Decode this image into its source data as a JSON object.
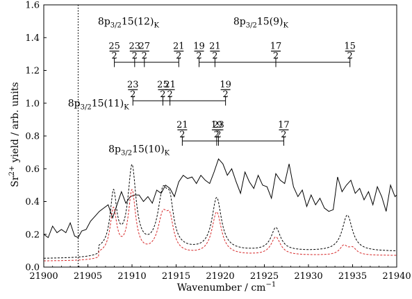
{
  "chart_data": {
    "type": "line",
    "xlabel": "Wavenumber / cm",
    "xlabel_superscript": "−1",
    "ylabel_parts": [
      "Sr",
      "2+",
      " yield / arb. units"
    ],
    "xlim": [
      21900,
      21940
    ],
    "ylim": [
      0,
      1.6
    ],
    "x_ticks": [
      21900,
      21905,
      21910,
      21915,
      21920,
      21925,
      21930,
      21935,
      21940
    ],
    "y_ticks": [
      0.0,
      0.2,
      0.4,
      0.6,
      0.8,
      1.0,
      1.2,
      1.4,
      1.6
    ],
    "grid": false,
    "vline": {
      "x": 21903.9,
      "style": "dotted"
    },
    "series": [
      {
        "style": "solid",
        "color": "#000000",
        "x": [
          21900.0,
          21900.5,
          21901.0,
          21901.5,
          21902.0,
          21902.5,
          21903.0,
          21903.5,
          21903.9,
          21904.3,
          21904.8,
          21905.3,
          21905.8,
          21906.3,
          21906.8,
          21907.3,
          21907.8,
          21908.3,
          21908.8,
          21909.3,
          21909.8,
          21910.3,
          21910.8,
          21911.3,
          21911.8,
          21912.3,
          21912.8,
          21913.3,
          21913.8,
          21914.3,
          21914.8,
          21915.3,
          21915.8,
          21916.3,
          21916.8,
          21917.3,
          21917.8,
          21918.3,
          21918.8,
          21919.3,
          21919.8,
          21920.3,
          21920.8,
          21921.3,
          21921.8,
          21922.3,
          21922.8,
          21923.3,
          21923.8,
          21924.3,
          21924.8,
          21925.3,
          21925.8,
          21926.3,
          21926.8,
          21927.3,
          21927.8,
          21928.3,
          21928.8,
          21929.3,
          21929.8,
          21930.3,
          21930.8,
          21931.3,
          21931.8,
          21932.3,
          21932.8,
          21933.3,
          21933.8,
          21934.3,
          21934.8,
          21935.3,
          21935.8,
          21936.3,
          21936.8,
          21937.3,
          21937.8,
          21938.3,
          21938.8,
          21939.3,
          21939.8,
          21940.0
        ],
        "y": [
          0.2,
          0.18,
          0.25,
          0.21,
          0.23,
          0.21,
          0.27,
          0.19,
          0.18,
          0.22,
          0.23,
          0.28,
          0.31,
          0.34,
          0.36,
          0.38,
          0.3,
          0.38,
          0.46,
          0.39,
          0.43,
          0.44,
          0.44,
          0.4,
          0.43,
          0.39,
          0.47,
          0.45,
          0.5,
          0.48,
          0.43,
          0.52,
          0.56,
          0.54,
          0.55,
          0.51,
          0.56,
          0.53,
          0.51,
          0.58,
          0.66,
          0.63,
          0.56,
          0.6,
          0.52,
          0.45,
          0.58,
          0.52,
          0.48,
          0.56,
          0.5,
          0.49,
          0.42,
          0.57,
          0.53,
          0.51,
          0.63,
          0.49,
          0.43,
          0.47,
          0.37,
          0.44,
          0.38,
          0.42,
          0.36,
          0.34,
          0.35,
          0.55,
          0.46,
          0.5,
          0.53,
          0.45,
          0.48,
          0.41,
          0.46,
          0.38,
          0.49,
          0.43,
          0.34,
          0.5,
          0.43,
          0.44
        ]
      },
      {
        "style": "dashed",
        "color": "#000000",
        "model": "black"
      },
      {
        "style": "dashed",
        "color": "#d62728",
        "model": "red"
      }
    ],
    "annotations": [
      {
        "series_label": {
          "pre": "8p",
          "sub": "3/2",
          "mid": "15(12)",
          "post_sub": "K"
        },
        "label_x": 21909.6,
        "label_y": 1.48,
        "bar_y": 1.25,
        "line": [
          21908.0,
          21915.3
        ],
        "ticks": [
          {
            "x": 21908.0,
            "num": "25",
            "den": "2"
          },
          {
            "x": 21910.3,
            "num": "23",
            "den": "2"
          },
          {
            "x": 21911.4,
            "num": "27",
            "den": "2"
          },
          {
            "x": 21915.3,
            "num": "21",
            "den": "2"
          }
        ]
      },
      {
        "series_label": {
          "pre": "8p",
          "sub": "3/2",
          "mid": "15(9)",
          "post_sub": "K"
        },
        "label_x": 21924.6,
        "label_y": 1.48,
        "bar_y": 1.25,
        "line": [
          21917.6,
          21934.7
        ],
        "ticks": [
          {
            "x": 21917.6,
            "num": "19",
            "den": "2"
          },
          {
            "x": 21919.4,
            "num": "21",
            "den": "2"
          },
          {
            "x": 21926.3,
            "num": "17",
            "den": "2"
          },
          {
            "x": 21934.7,
            "num": "15",
            "den": "2"
          }
        ]
      },
      {
        "series_label": {
          "pre": "8p",
          "sub": "3/2",
          "mid": "15(11)",
          "post_sub": "K"
        },
        "label_x": 21906.2,
        "label_y": 0.98,
        "bar_y": 1.015,
        "line": [
          21910.1,
          21920.6
        ],
        "ticks": [
          {
            "x": 21910.1,
            "num": "23",
            "den": "2"
          },
          {
            "x": 21913.5,
            "num": "25",
            "den": "2"
          },
          {
            "x": 21914.3,
            "num": "21",
            "den": "2"
          },
          {
            "x": 21920.6,
            "num": "19",
            "den": "2"
          }
        ]
      },
      {
        "series_label": {
          "pre": "8p",
          "sub": "3/2",
          "mid": "15(10)",
          "post_sub": "K"
        },
        "label_x": 21910.8,
        "label_y": 0.7,
        "bar_y": 0.77,
        "line": [
          21915.7,
          21927.2
        ],
        "ticks": [
          {
            "x": 21915.7,
            "num": "21",
            "den": "2"
          },
          {
            "x": 21919.6,
            "num": "19",
            "den": "2"
          },
          {
            "x": 21919.8,
            "num": "23",
            "den": "2"
          },
          {
            "x": 21927.2,
            "num": "17",
            "den": "2"
          }
        ]
      }
    ]
  }
}
